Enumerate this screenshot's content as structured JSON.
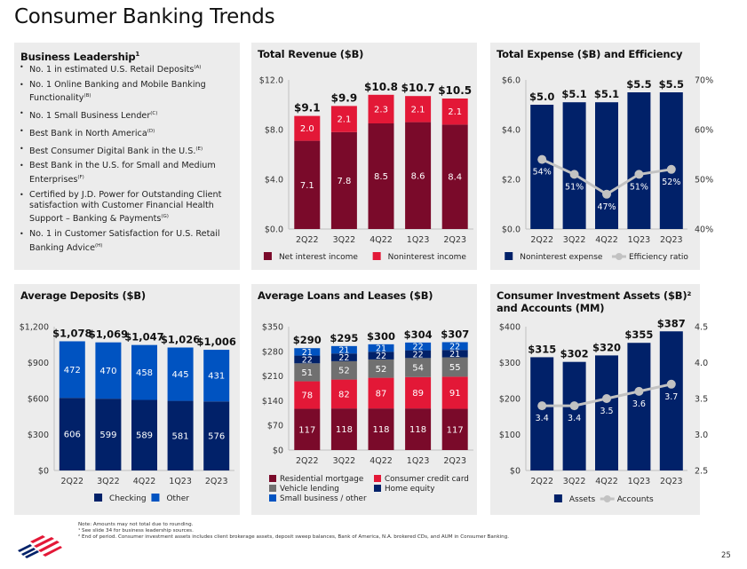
{
  "page": {
    "title": "Consumer Banking Trends",
    "page_number": "25",
    "notes": [
      "Note: Amounts may not total due to rounding.",
      "¹ See slide 34 for business leadership sources.",
      "² End of period. Consumer investment assets includes client brokerage assets, deposit sweep balances, Bank of America, N.A. brokered CDs, and AUM in Consumer Banking."
    ]
  },
  "leadership": {
    "title": "Business Leadership",
    "title_sup": "1",
    "items": [
      {
        "text": "No. 1 in estimated U.S. Retail Deposits",
        "sup": "(A)"
      },
      {
        "text": "No. 1 Online Banking and Mobile Banking Functionality",
        "sup": "(B)"
      },
      {
        "text": "No. 1 Small Business Lender",
        "sup": "(C)"
      },
      {
        "text": "Best Bank in North America",
        "sup": "(D)"
      },
      {
        "text": "Best Consumer Digital Bank in the U.S.",
        "sup": "(E)"
      },
      {
        "text": "Best Bank in the U.S. for Small and Medium Enterprises",
        "sup": "(F)"
      },
      {
        "text": "Certified by J.D. Power for Outstanding Client satisfaction with Customer Financial Health Support – Banking & Payments",
        "sup": "(G)"
      },
      {
        "text": "No. 1 in Customer Satisfaction for U.S. Retail Banking Advice",
        "sup": "(H)"
      }
    ]
  },
  "colors": {
    "maroon": "#7a0a2a",
    "red": "#e31837",
    "navy": "#012169",
    "blue": "#0053c1",
    "gray": "#707070",
    "line_gray": "#c2c2c2",
    "panel_bg": "#ececec"
  },
  "chart_data": [
    {
      "id": "revenue",
      "type": "bar",
      "stacked": true,
      "title": "Total Revenue ($B)",
      "categories": [
        "2Q22",
        "3Q22",
        "4Q22",
        "1Q23",
        "2Q23"
      ],
      "series": [
        {
          "name": "Net interest income",
          "values": [
            7.1,
            7.8,
            8.5,
            8.6,
            8.4
          ],
          "labels": [
            "7.1",
            "7.8",
            "8.5",
            "8.6",
            "8.4"
          ],
          "color": "#7a0a2a"
        },
        {
          "name": "Noninterest income",
          "values": [
            2.0,
            2.1,
            2.3,
            2.1,
            2.1
          ],
          "labels": [
            "2.0",
            "2.1",
            "2.3",
            "2.1",
            "2.1"
          ],
          "color": "#e31837"
        }
      ],
      "totals": [
        "$9.1",
        "$9.9",
        "$10.8",
        "$10.7",
        "$10.5"
      ],
      "total_values": [
        9.1,
        9.9,
        10.8,
        10.7,
        10.5
      ],
      "ylim": [
        0,
        12
      ],
      "yticks": [
        0,
        4,
        8,
        12
      ],
      "ytick_labels": [
        "$0.0",
        "$4.0",
        "$8.0",
        "$12.0"
      ],
      "legend": "bottom"
    },
    {
      "id": "expense",
      "type": "bar",
      "title": "Total Expense ($B) and Efficiency",
      "categories": [
        "2Q22",
        "3Q22",
        "4Q22",
        "1Q23",
        "2Q23"
      ],
      "series": [
        {
          "name": "Noninterest expense",
          "values": [
            5.0,
            5.1,
            5.1,
            5.5,
            5.5
          ],
          "color": "#012169",
          "axis": "left"
        },
        {
          "name": "Efficiency ratio",
          "type": "line",
          "values": [
            54,
            51,
            47,
            51,
            52
          ],
          "labels": [
            "54%",
            "51%",
            "47%",
            "51%",
            "52%"
          ],
          "color": "#c2c2c2",
          "axis": "right"
        }
      ],
      "totals": [
        "$5.0",
        "$5.1",
        "$5.1",
        "$5.5",
        "$5.5"
      ],
      "ylim": [
        0,
        6
      ],
      "yticks": [
        0,
        2,
        4,
        6
      ],
      "ytick_labels": [
        "$0.0",
        "$2.0",
        "$4.0",
        "$6.0"
      ],
      "y2lim": [
        40,
        70
      ],
      "y2ticks": [
        40,
        50,
        60,
        70
      ],
      "y2tick_labels": [
        "40%",
        "50%",
        "60%",
        "70%"
      ],
      "legend": "bottom"
    },
    {
      "id": "deposits",
      "type": "bar",
      "stacked": true,
      "title": "Average Deposits ($B)",
      "categories": [
        "2Q22",
        "3Q22",
        "4Q22",
        "1Q23",
        "2Q23"
      ],
      "series": [
        {
          "name": "Checking",
          "values": [
            606,
            599,
            589,
            581,
            576
          ],
          "labels": [
            "606",
            "599",
            "589",
            "581",
            "576"
          ],
          "color": "#012169"
        },
        {
          "name": "Other",
          "values": [
            472,
            470,
            458,
            445,
            431
          ],
          "labels": [
            "472",
            "470",
            "458",
            "445",
            "431"
          ],
          "color": "#0053c1"
        }
      ],
      "totals": [
        "$1,078",
        "$1,069",
        "$1,047",
        "$1,026",
        "$1,006"
      ],
      "total_values": [
        1078,
        1069,
        1047,
        1026,
        1006
      ],
      "ylim": [
        0,
        1200
      ],
      "yticks": [
        0,
        300,
        600,
        900,
        1200
      ],
      "ytick_labels": [
        "$0",
        "$300",
        "$600",
        "$900",
        "$1,200"
      ],
      "legend": "bottom"
    },
    {
      "id": "loans",
      "type": "bar",
      "stacked": true,
      "title": "Average Loans and Leases ($B)",
      "categories": [
        "2Q22",
        "3Q22",
        "4Q22",
        "1Q23",
        "2Q23"
      ],
      "series": [
        {
          "name": "Residential mortgage",
          "values": [
            117,
            118,
            118,
            118,
            117
          ],
          "labels": [
            "117",
            "118",
            "118",
            "118",
            "117"
          ],
          "color": "#7a0a2a"
        },
        {
          "name": "Consumer credit card",
          "values": [
            78,
            82,
            87,
            89,
            91
          ],
          "labels": [
            "78",
            "82",
            "87",
            "89",
            "91"
          ],
          "color": "#e31837"
        },
        {
          "name": "Vehicle lending",
          "values": [
            51,
            52,
            52,
            54,
            55
          ],
          "labels": [
            "51",
            "52",
            "52",
            "54",
            "55"
          ],
          "color": "#707070"
        },
        {
          "name": "Home equity",
          "values": [
            22,
            22,
            22,
            22,
            21
          ],
          "labels": [
            "22",
            "22",
            "22",
            "22",
            "21"
          ],
          "color": "#012169"
        },
        {
          "name": "Small business / other",
          "values": [
            21,
            21,
            21,
            22,
            22
          ],
          "labels": [
            "21",
            "21",
            "21",
            "22",
            "22"
          ],
          "color": "#0053c1"
        }
      ],
      "totals": [
        "$290",
        "$295",
        "$300",
        "$304",
        "$307"
      ],
      "total_values": [
        290,
        295,
        300,
        304,
        307
      ],
      "ylim": [
        0,
        350
      ],
      "yticks": [
        0,
        70,
        140,
        210,
        280,
        350
      ],
      "ytick_labels": [
        "$0",
        "$70",
        "$140",
        "$210",
        "$280",
        "$350"
      ],
      "legend": "bottom"
    },
    {
      "id": "investment",
      "type": "bar",
      "title": "Consumer Investment Assets ($B)² and Accounts (MM)",
      "categories": [
        "2Q22",
        "3Q22",
        "4Q22",
        "1Q23",
        "2Q23"
      ],
      "series": [
        {
          "name": "Assets",
          "values": [
            315,
            302,
            320,
            355,
            387
          ],
          "color": "#012169",
          "axis": "left"
        },
        {
          "name": "Accounts",
          "type": "line",
          "values": [
            3.4,
            3.4,
            3.5,
            3.6,
            3.7
          ],
          "labels": [
            "3.4",
            "3.4",
            "3.5",
            "3.6",
            "3.7"
          ],
          "color": "#c2c2c2",
          "axis": "right"
        }
      ],
      "totals": [
        "$315",
        "$302",
        "$320",
        "$355",
        "$387"
      ],
      "ylim": [
        0,
        400
      ],
      "yticks": [
        0,
        100,
        200,
        300,
        400
      ],
      "ytick_labels": [
        "$0",
        "$100",
        "$200",
        "$300",
        "$400"
      ],
      "y2lim": [
        2.5,
        4.5
      ],
      "y2ticks": [
        2.5,
        3.0,
        3.5,
        4.0,
        4.5
      ],
      "y2tick_labels": [
        "2.5",
        "3.0",
        "3.5",
        "4.0",
        "4.5"
      ],
      "legend": "bottom"
    }
  ]
}
